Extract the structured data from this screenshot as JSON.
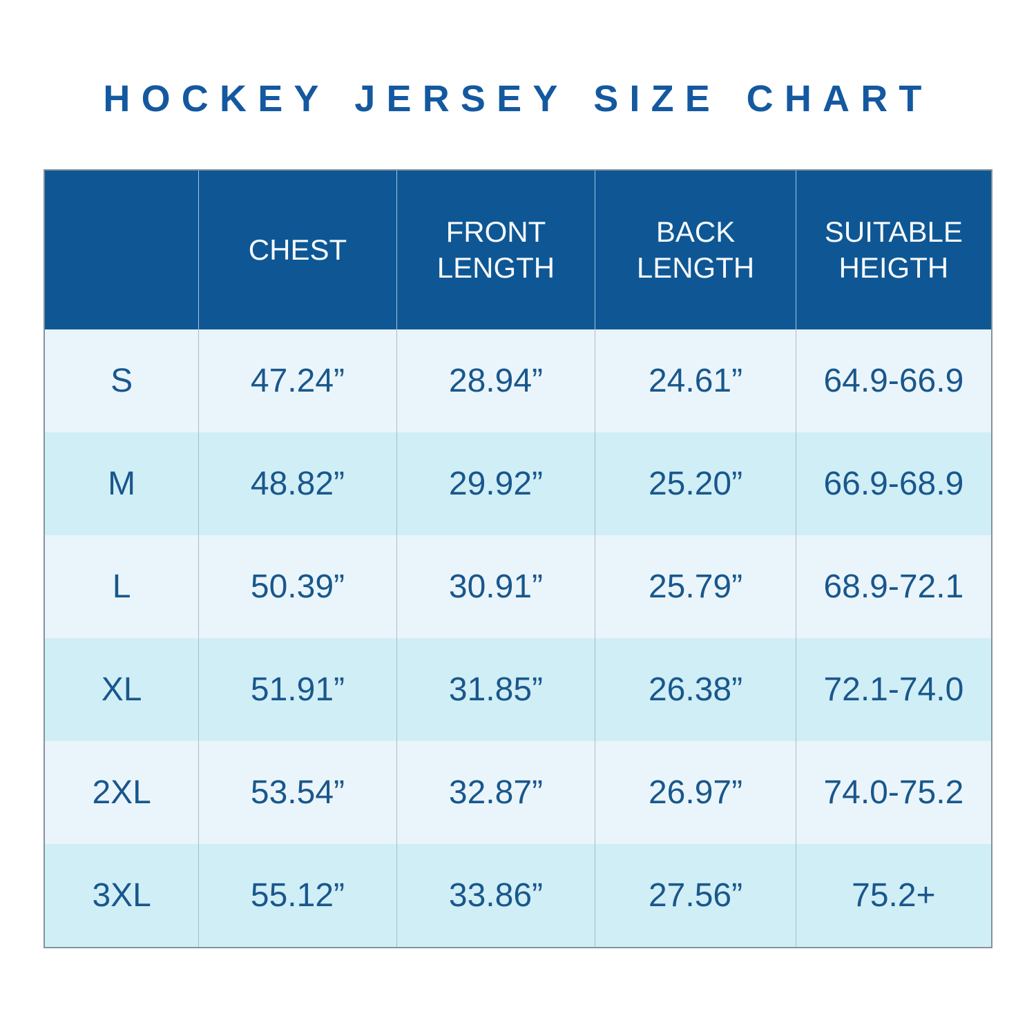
{
  "title": "HOCKEY JERSEY SIZE CHART",
  "colors": {
    "title_text": "#1459a0",
    "header_bg": "#0e5794",
    "header_text": "#f7fafc",
    "data_text": "#19578c",
    "row_light": "#eaf5fb",
    "row_cyan": "#d0eef6"
  },
  "chart_data": {
    "type": "table",
    "title": "HOCKEY JERSEY SIZE CHART",
    "columns": [
      "",
      "CHEST",
      "FRONT LENGTH",
      "BACK LENGTH",
      "SUITABLE HEIGTH"
    ],
    "rows": [
      [
        "S",
        "47.24”",
        "28.94”",
        "24.61”",
        "64.9-66.9"
      ],
      [
        "M",
        "48.82”",
        "29.92”",
        "25.20”",
        "66.9-68.9"
      ],
      [
        "L",
        "50.39”",
        "30.91”",
        "25.79”",
        "68.9-72.1"
      ],
      [
        "XL",
        "51.91”",
        "31.85”",
        "26.38”",
        "72.1-74.0"
      ],
      [
        "2XL",
        "53.54”",
        "32.87”",
        "26.97”",
        "74.0-75.2"
      ],
      [
        "3XL",
        "55.12”",
        "33.86”",
        "27.56”",
        "75.2+"
      ]
    ]
  }
}
